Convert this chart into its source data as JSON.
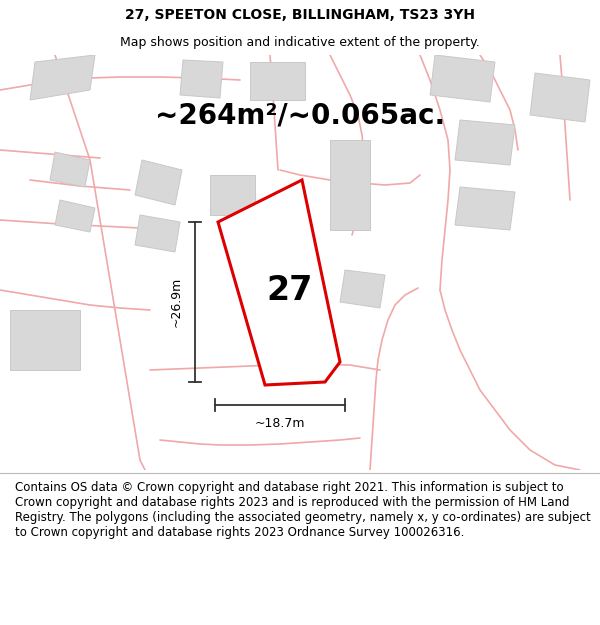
{
  "title": "27, SPEETON CLOSE, BILLINGHAM, TS23 3YH",
  "subtitle": "Map shows position and indicative extent of the property.",
  "area_text": "~264m²/~0.065ac.",
  "label_27": "27",
  "dim_width": "~18.7m",
  "dim_height": "~26.9m",
  "background_color": "#ffffff",
  "map_bg_color": "#ffffff",
  "building_fill": "#d8d8d8",
  "building_edge": "#c8c8c8",
  "road_color": "#f0a8a8",
  "plot_color": "#dd0000",
  "plot_fill": "#ffffff",
  "footer_text": "Contains OS data © Crown copyright and database right 2021. This information is subject to Crown copyright and database rights 2023 and is reproduced with the permission of HM Land Registry. The polygons (including the associated geometry, namely x, y co-ordinates) are subject to Crown copyright and database rights 2023 Ordnance Survey 100026316.",
  "header_title_fontsize": 10,
  "header_subtitle_fontsize": 9,
  "area_text_fontsize": 20,
  "label_fontsize": 24,
  "dim_fontsize": 9,
  "footer_fontsize": 8.5
}
